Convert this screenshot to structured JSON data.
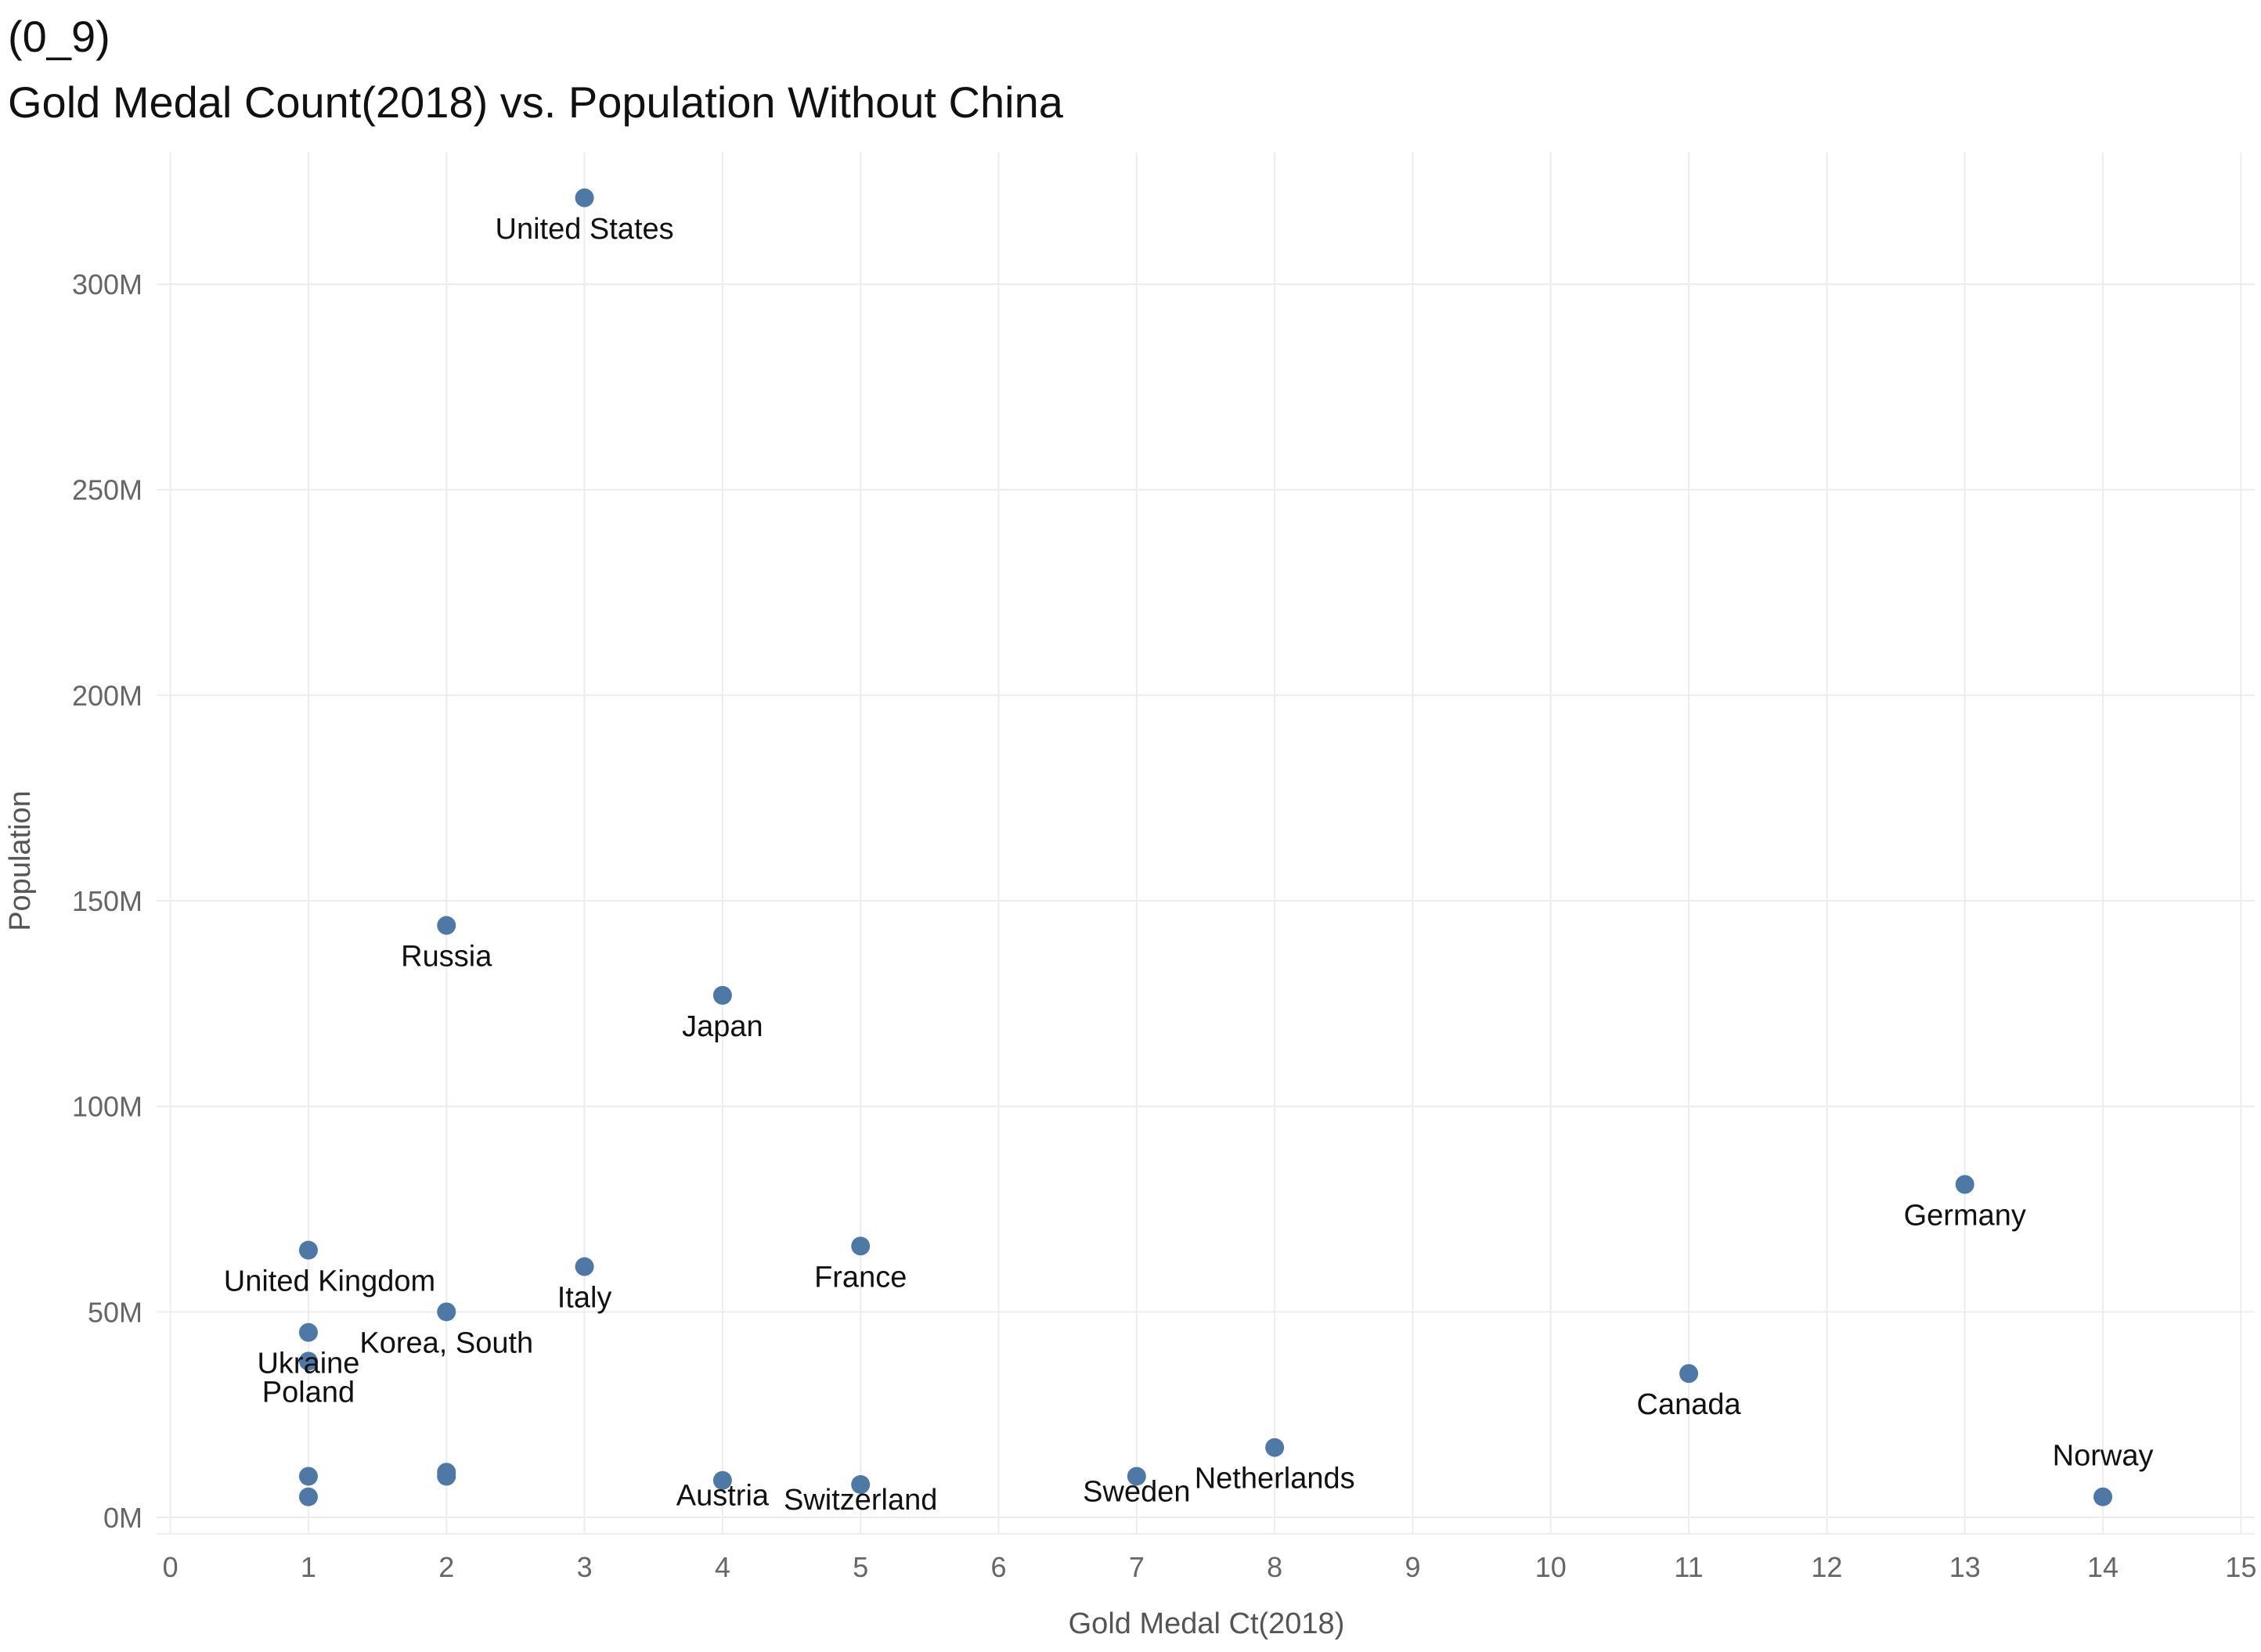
{
  "chart_data": {
    "type": "scatter",
    "title_line1": "(0_9)",
    "title_line2": "Gold Medal Count(2018) vs. Population Without China",
    "xlabel": "Gold Medal Ct(2018)",
    "ylabel": "Population",
    "xlim": [
      -0.1,
      15.1
    ],
    "ylim": [
      -4000000,
      332000000
    ],
    "x_ticks": [
      0,
      1,
      2,
      3,
      4,
      5,
      6,
      7,
      8,
      9,
      10,
      11,
      12,
      13,
      14,
      15
    ],
    "x_tick_labels": [
      "0",
      "1",
      "2",
      "3",
      "4",
      "5",
      "6",
      "7",
      "8",
      "9",
      "10",
      "11",
      "12",
      "13",
      "14",
      "15"
    ],
    "y_ticks": [
      0,
      50000000,
      100000000,
      150000000,
      200000000,
      250000000,
      300000000
    ],
    "y_tick_labels": [
      "0M",
      "50M",
      "100M",
      "150M",
      "200M",
      "250M",
      "300M"
    ],
    "grid": true,
    "point_color": "#4e79a7",
    "points": [
      {
        "label": "United States",
        "x": 3,
        "y": 321000000
      },
      {
        "label": "Russia",
        "x": 2,
        "y": 144000000
      },
      {
        "label": "Japan",
        "x": 4,
        "y": 127000000
      },
      {
        "label": "Germany",
        "x": 13,
        "y": 81000000
      },
      {
        "label": "France",
        "x": 5,
        "y": 66000000
      },
      {
        "label": "United Kingdom",
        "x": 1,
        "y": 65000000
      },
      {
        "label": "Italy",
        "x": 3,
        "y": 61000000
      },
      {
        "label": "Korea, South",
        "x": 2,
        "y": 50000000
      },
      {
        "label": "Ukraine",
        "x": 1,
        "y": 45000000
      },
      {
        "label": "Poland",
        "x": 1,
        "y": 38000000
      },
      {
        "label": "Canada",
        "x": 11,
        "y": 35000000
      },
      {
        "label": "Netherlands",
        "x": 8,
        "y": 17000000
      },
      {
        "label": "Sweden",
        "x": 7,
        "y": 10000000
      },
      {
        "label": "Austria",
        "x": 4,
        "y": 9000000
      },
      {
        "label": "Switzerland",
        "x": 5,
        "y": 8000000
      },
      {
        "label": "Norway",
        "x": 14,
        "y": 5000000
      },
      {
        "label": "",
        "x": 1,
        "y": 10000000
      },
      {
        "label": "",
        "x": 1,
        "y": 5000000
      },
      {
        "label": "",
        "x": 2,
        "y": 11000000
      },
      {
        "label": "",
        "x": 2,
        "y": 10000000
      }
    ]
  }
}
